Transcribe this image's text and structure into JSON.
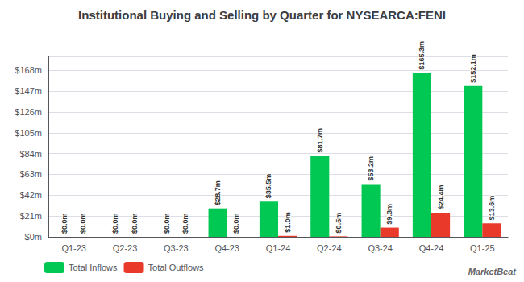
{
  "chart_data": {
    "type": "bar",
    "title": "Institutional Buying and Selling by Quarter for NYSEARCA:FENI",
    "categories": [
      "Q1-23",
      "Q2-23",
      "Q3-23",
      "Q4-23",
      "Q1-24",
      "Q2-24",
      "Q3-24",
      "Q4-24",
      "Q1-25"
    ],
    "series": [
      {
        "name": "Total Inflows",
        "color": "#00c853",
        "values": [
          0.0,
          0.0,
          0.0,
          28.7,
          35.5,
          81.7,
          53.2,
          165.3,
          152.1
        ],
        "value_labels": [
          "$0.0m",
          "$0.0m",
          "$0.0m",
          "$28.7m",
          "$35.5m",
          "$81.7m",
          "$53.2m",
          "$165.3m",
          "$152.1m"
        ]
      },
      {
        "name": "Total Outflows",
        "color": "#e8392a",
        "values": [
          0.0,
          0.0,
          0.0,
          0.0,
          1.0,
          0.5,
          9.3,
          24.4,
          13.6
        ],
        "value_labels": [
          "$0.0m",
          "$0.0m",
          "$0.0m",
          "$0.0m",
          "$1.0m",
          "$0.5m",
          "$9.3m",
          "$24.4m",
          "$13.6m"
        ]
      }
    ],
    "ylim": [
      0,
      182
    ],
    "yticks": [
      {
        "value": 0,
        "label": "$0m"
      },
      {
        "value": 21,
        "label": "$21m"
      },
      {
        "value": 42,
        "label": "$42m"
      },
      {
        "value": 63,
        "label": "$63m"
      },
      {
        "value": 84,
        "label": "$84m"
      },
      {
        "value": 105,
        "label": "$105m"
      },
      {
        "value": 126,
        "label": "$126m"
      },
      {
        "value": 147,
        "label": "$147m"
      },
      {
        "value": 168,
        "label": "$168m"
      }
    ],
    "grid": true,
    "legend": "lower left",
    "data_labels": true,
    "annotations": [
      "MarketBeat"
    ]
  }
}
